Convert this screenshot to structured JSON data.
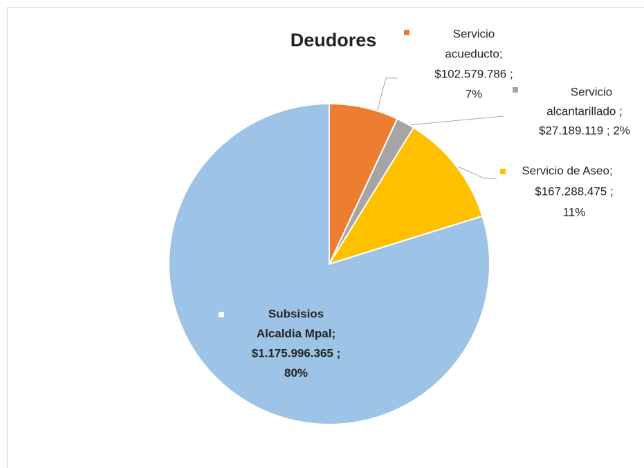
{
  "chart_data": {
    "type": "pie",
    "title": "Deudores",
    "values": [
      102579786,
      27189119,
      167288475,
      1175996365
    ],
    "colors": [
      "#ed7d31",
      "#a5a5a5",
      "#ffc000",
      "#9dc3e6"
    ],
    "value_labels": [
      [
        "Servicio",
        "acueducto;",
        "$102.579.786 ;",
        "7%"
      ],
      [
        "Servicio",
        "alcantarillado ;",
        "$27.189.119 ; 2%"
      ],
      [
        "Servicio de Aseo;",
        "$167.288.475 ;",
        "11%"
      ],
      [
        "Subsisios",
        "Alcaldia Mpal;",
        "$1.175.996.365 ;",
        "80%"
      ]
    ]
  }
}
